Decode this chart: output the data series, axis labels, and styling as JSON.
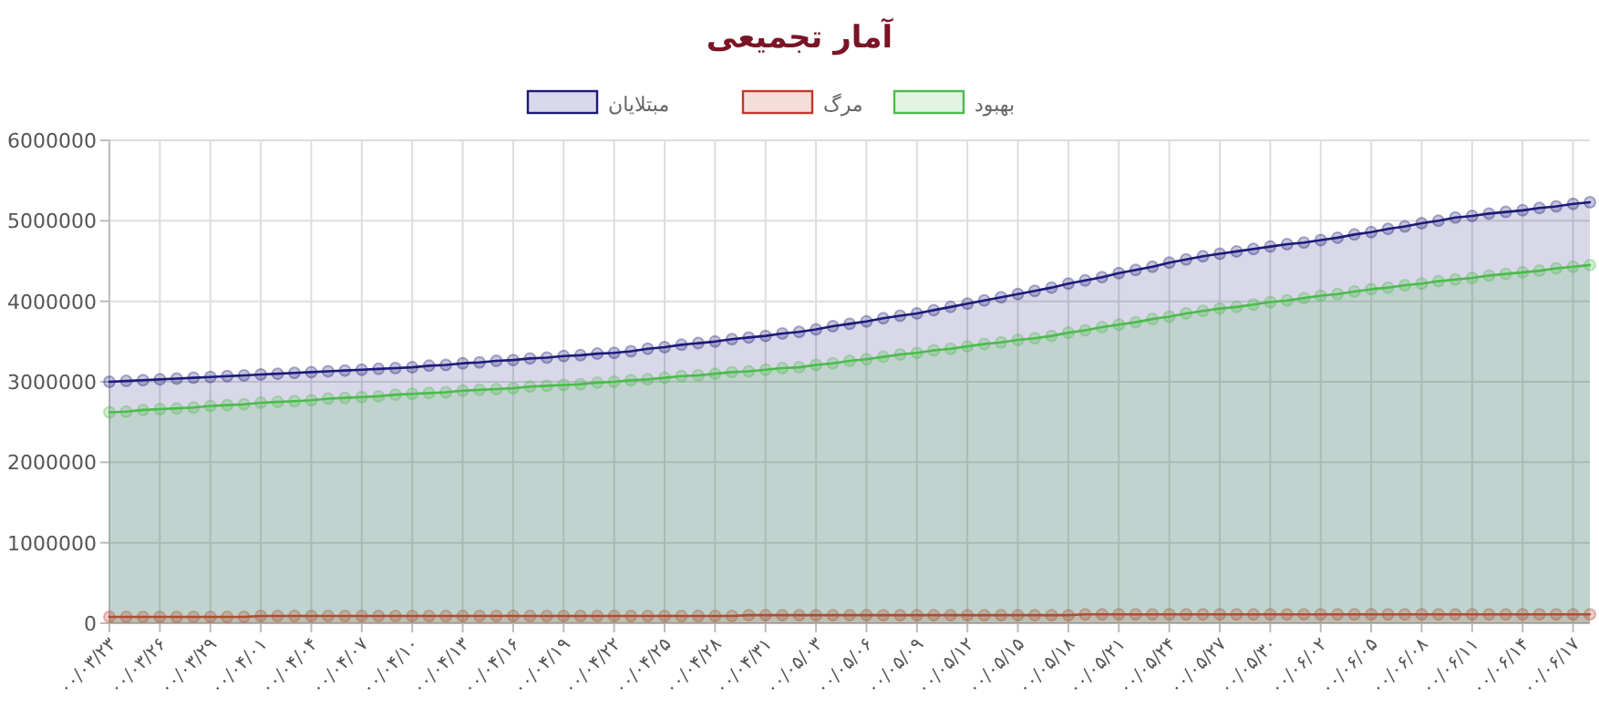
{
  "chart_data": {
    "type": "area",
    "title": "آمار تجمیعی",
    "categories": [
      "۰۰/۰۳/۲۳",
      null,
      null,
      "۰۰/۰۳/۲۶",
      null,
      null,
      "۰۰/۰۳/۲۹",
      null,
      null,
      "۰۰/۰۴/۰۱",
      null,
      null,
      "۰۰/۰۴/۰۴",
      null,
      null,
      "۰۰/۰۴/۰۷",
      null,
      null,
      "۰۰/۰۴/۱۰",
      null,
      null,
      "۰۰/۰۴/۱۳",
      null,
      null,
      "۰۰/۰۴/۱۶",
      null,
      null,
      "۰۰/۰۴/۱۹",
      null,
      null,
      "۰۰/۰۴/۲۲",
      null,
      null,
      "۰۰/۰۴/۲۵",
      null,
      null,
      "۰۰/۰۴/۲۸",
      null,
      null,
      "۰۰/۰۴/۳۱",
      null,
      null,
      "۰۰/۰۵/۰۳",
      null,
      null,
      "۰۰/۰۵/۰۶",
      null,
      null,
      "۰۰/۰۵/۰۹",
      null,
      null,
      "۰۰/۰۵/۱۲",
      null,
      null,
      "۰۰/۰۵/۱۵",
      null,
      null,
      "۰۰/۰۵/۱۸",
      null,
      null,
      "۰۰/۰۵/۲۱",
      null,
      null,
      "۰۰/۰۵/۲۴",
      null,
      null,
      "۰۰/۰۵/۲۷",
      null,
      null,
      "۰۰/۰۵/۳۰",
      null,
      null,
      "۰۰/۰۶/۰۲",
      null,
      null,
      "۰۰/۰۶/۰۵",
      null,
      null,
      "۰۰/۰۶/۰۸",
      null,
      null,
      "۰۰/۰۶/۱۱",
      null,
      null,
      "۰۰/۰۶/۱۴",
      null,
      null,
      "۰۰/۰۶/۱۷",
      null
    ],
    "series": [
      {
        "name": "مبتلایان",
        "color": "#1c1a78",
        "values": [
          3000000,
          3010000,
          3020000,
          3030000,
          3040000,
          3050000,
          3060000,
          3070000,
          3080000,
          3090000,
          3100000,
          3110000,
          3120000,
          3130000,
          3140000,
          3150000,
          3160000,
          3170000,
          3180000,
          3200000,
          3210000,
          3230000,
          3240000,
          3260000,
          3270000,
          3290000,
          3300000,
          3320000,
          3330000,
          3350000,
          3360000,
          3380000,
          3410000,
          3430000,
          3460000,
          3480000,
          3500000,
          3530000,
          3550000,
          3570000,
          3600000,
          3620000,
          3650000,
          3690000,
          3720000,
          3750000,
          3790000,
          3820000,
          3850000,
          3890000,
          3930000,
          3970000,
          4010000,
          4050000,
          4090000,
          4130000,
          4170000,
          4220000,
          4260000,
          4300000,
          4350000,
          4390000,
          4430000,
          4480000,
          4520000,
          4560000,
          4590000,
          4620000,
          4650000,
          4680000,
          4710000,
          4730000,
          4760000,
          4790000,
          4830000,
          4860000,
          4900000,
          4930000,
          4970000,
          5000000,
          5040000,
          5060000,
          5090000,
          5110000,
          5130000,
          5160000,
          5180000,
          5210000,
          5230000
        ]
      },
      {
        "name": "مرگ",
        "color": "#c0392b",
        "values": [
          80000,
          80000,
          80000,
          80000,
          80000,
          80000,
          80000,
          80000,
          80000,
          90000,
          90000,
          90000,
          90000,
          90000,
          90000,
          90000,
          90000,
          90000,
          90000,
          90000,
          90000,
          90000,
          90000,
          90000,
          90000,
          90000,
          90000,
          90000,
          90000,
          90000,
          90000,
          90000,
          90000,
          90000,
          90000,
          90000,
          90000,
          90000,
          100000,
          100000,
          100000,
          100000,
          100000,
          100000,
          100000,
          100000,
          100000,
          100000,
          100000,
          100000,
          100000,
          100000,
          100000,
          100000,
          100000,
          100000,
          100000,
          100000,
          110000,
          110000,
          110000,
          110000,
          110000,
          110000,
          110000,
          110000,
          110000,
          110000,
          110000,
          110000,
          110000,
          110000,
          110000,
          110000,
          110000,
          110000,
          110000,
          110000,
          110000,
          110000,
          110000,
          110000,
          110000,
          110000,
          110000,
          110000,
          110000,
          110000,
          110000
        ]
      },
      {
        "name": "بهبود",
        "color": "#4cbb4c",
        "values": [
          2620000,
          2630000,
          2650000,
          2660000,
          2670000,
          2680000,
          2700000,
          2710000,
          2720000,
          2740000,
          2750000,
          2760000,
          2770000,
          2790000,
          2800000,
          2810000,
          2820000,
          2840000,
          2850000,
          2860000,
          2870000,
          2890000,
          2900000,
          2910000,
          2920000,
          2940000,
          2950000,
          2960000,
          2970000,
          2990000,
          3000000,
          3020000,
          3030000,
          3050000,
          3070000,
          3080000,
          3100000,
          3120000,
          3130000,
          3150000,
          3170000,
          3180000,
          3210000,
          3230000,
          3260000,
          3280000,
          3310000,
          3340000,
          3360000,
          3390000,
          3410000,
          3440000,
          3470000,
          3490000,
          3520000,
          3540000,
          3570000,
          3610000,
          3640000,
          3680000,
          3710000,
          3740000,
          3780000,
          3810000,
          3850000,
          3880000,
          3910000,
          3930000,
          3960000,
          3990000,
          4010000,
          4040000,
          4070000,
          4090000,
          4120000,
          4150000,
          4170000,
          4200000,
          4220000,
          4250000,
          4270000,
          4290000,
          4320000,
          4340000,
          4360000,
          4380000,
          4410000,
          4430000,
          4450000
        ]
      }
    ],
    "ylim": [
      0,
      6000000
    ],
    "yticks": [
      0,
      1000000,
      2000000,
      3000000,
      4000000,
      5000000,
      6000000
    ],
    "grid": true,
    "legend": "top",
    "marker": "circle",
    "line_style": "solid"
  }
}
